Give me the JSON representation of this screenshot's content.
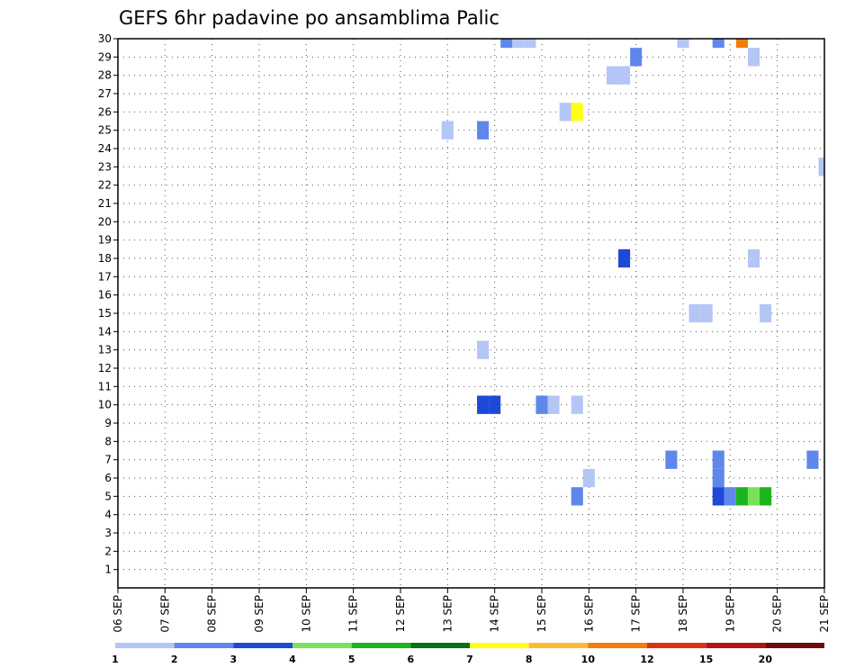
{
  "chart_data": {
    "type": "heatmap",
    "title": "GEFS 6hr padavine po ansamblima Palic",
    "xlabel": "",
    "ylabel": "",
    "x_tick_labels": [
      "06 SEP",
      "07 SEP",
      "08 SEP",
      "09 SEP",
      "10 SEP",
      "11 SEP",
      "12 SEP",
      "13 SEP",
      "14 SEP",
      "15 SEP",
      "16 SEP",
      "17 SEP",
      "18 SEP",
      "19 SEP",
      "20 SEP",
      "21 SEP"
    ],
    "y_tick_labels": [
      "1",
      "2",
      "3",
      "4",
      "5",
      "6",
      "7",
      "8",
      "9",
      "10",
      "11",
      "12",
      "13",
      "14",
      "15",
      "16",
      "17",
      "18",
      "19",
      "20",
      "21",
      "22",
      "23",
      "24",
      "25",
      "26",
      "27",
      "28",
      "29",
      "30"
    ],
    "xlim_days": [
      6,
      21
    ],
    "ylim": [
      0,
      30
    ],
    "grid": true,
    "colorbar": {
      "labels": [
        "1",
        "2",
        "3",
        "4",
        "5",
        "6",
        "7",
        "8",
        "10",
        "12",
        "15",
        "20"
      ],
      "colors": [
        "#b4c6f5",
        "#5f87eb",
        "#1e48d6",
        "#78e35a",
        "#1eb41e",
        "#0a6e14",
        "#ffff14",
        "#fdba32",
        "#f27d0a",
        "#dc3214",
        "#b41414",
        "#6e0a0a"
      ]
    },
    "cells": [
      {
        "day": 14.25,
        "member": 30,
        "value": 2
      },
      {
        "day": 14.5,
        "member": 30,
        "value": 1
      },
      {
        "day": 14.75,
        "member": 30,
        "value": 1
      },
      {
        "day": 18.0,
        "member": 30,
        "value": 1
      },
      {
        "day": 18.75,
        "member": 30,
        "value": 2
      },
      {
        "day": 19.25,
        "member": 30,
        "value": 10
      },
      {
        "day": 17.0,
        "member": 29,
        "value": 2
      },
      {
        "day": 19.5,
        "member": 29,
        "value": 1
      },
      {
        "day": 16.5,
        "member": 28,
        "value": 1
      },
      {
        "day": 16.75,
        "member": 28,
        "value": 1
      },
      {
        "day": 15.5,
        "member": 26,
        "value": 1
      },
      {
        "day": 15.75,
        "member": 26,
        "value": 7
      },
      {
        "day": 13.0,
        "member": 25,
        "value": 1
      },
      {
        "day": 13.75,
        "member": 25,
        "value": 2
      },
      {
        "day": 21.0,
        "member": 23,
        "value": 1
      },
      {
        "day": 16.75,
        "member": 18,
        "value": 3
      },
      {
        "day": 19.5,
        "member": 18,
        "value": 1
      },
      {
        "day": 18.25,
        "member": 15,
        "value": 1
      },
      {
        "day": 18.5,
        "member": 15,
        "value": 1
      },
      {
        "day": 19.75,
        "member": 15,
        "value": 1
      },
      {
        "day": 13.75,
        "member": 13,
        "value": 1
      },
      {
        "day": 13.75,
        "member": 10,
        "value": 3
      },
      {
        "day": 14.0,
        "member": 10,
        "value": 3
      },
      {
        "day": 15.0,
        "member": 10,
        "value": 2
      },
      {
        "day": 15.25,
        "member": 10,
        "value": 1
      },
      {
        "day": 15.75,
        "member": 10,
        "value": 1
      },
      {
        "day": 17.75,
        "member": 7,
        "value": 2
      },
      {
        "day": 18.75,
        "member": 7,
        "value": 2
      },
      {
        "day": 20.75,
        "member": 7,
        "value": 2
      },
      {
        "day": 16.0,
        "member": 6,
        "value": 1
      },
      {
        "day": 18.75,
        "member": 6,
        "value": 2
      },
      {
        "day": 18.75,
        "member": 5,
        "value": 3
      },
      {
        "day": 19.0,
        "member": 5,
        "value": 2
      },
      {
        "day": 19.25,
        "member": 5,
        "value": 5
      },
      {
        "day": 19.5,
        "member": 5,
        "value": 4
      },
      {
        "day": 19.75,
        "member": 5,
        "value": 5
      },
      {
        "day": 15.75,
        "member": 5,
        "value": 2
      }
    ]
  }
}
